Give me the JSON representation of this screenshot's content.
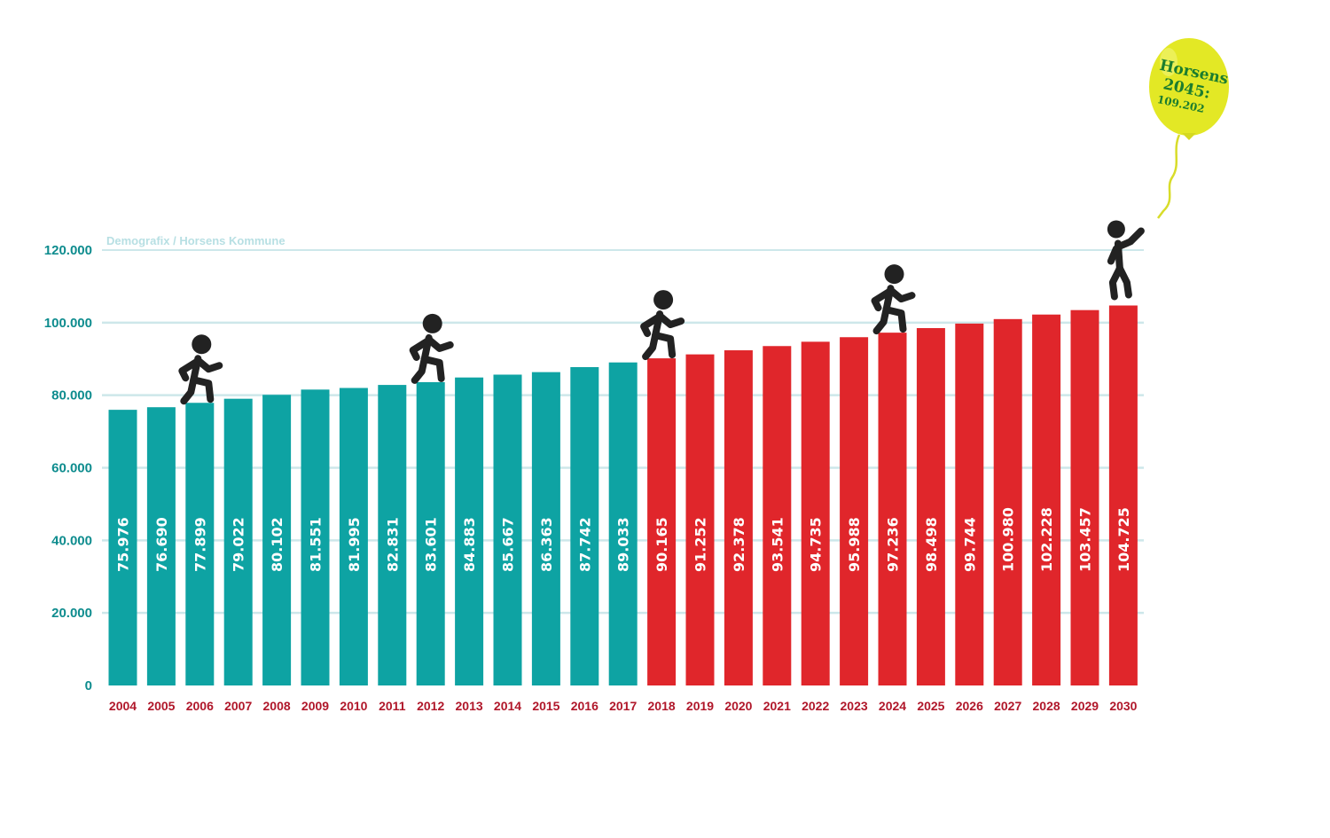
{
  "source_label": "Demografix / Horsens Kommune",
  "balloon": {
    "line1": "Horsens",
    "line2": "2045:",
    "line3": "109.202"
  },
  "colors": {
    "historical": "#0ea3a3",
    "forecast": "#e0262b",
    "grid": "#cde7ea",
    "ytick": "#0e8c8e",
    "xtick": "#b0172a",
    "balloon": "#e3e825",
    "figure": "#222222"
  },
  "chart_data": {
    "type": "bar",
    "title": "",
    "xlabel": "",
    "ylabel": "",
    "ylim": [
      0,
      120000
    ],
    "yticks": [
      0,
      20000,
      40000,
      60000,
      80000,
      100000,
      120000
    ],
    "ytick_labels": [
      "0",
      "20.000",
      "40.000",
      "60.000",
      "80.000",
      "100.000",
      "120.000"
    ],
    "grid": true,
    "categories": [
      "2004",
      "2005",
      "2006",
      "2007",
      "2008",
      "2009",
      "2010",
      "2011",
      "2012",
      "2013",
      "2014",
      "2015",
      "2016",
      "2017",
      "2018",
      "2019",
      "2020",
      "2021",
      "2022",
      "2023",
      "2024",
      "2025",
      "2026",
      "2027",
      "2028",
      "2029",
      "2030"
    ],
    "series": [
      {
        "values": [
          75976,
          76690,
          77899,
          79022,
          80102,
          81551,
          81995,
          82831,
          83601,
          84883,
          85667,
          86363,
          87742,
          89033,
          90165,
          91252,
          92378,
          93541,
          94735,
          95988,
          97236,
          98498,
          99744,
          100980,
          102228,
          103457,
          104725
        ]
      }
    ],
    "value_labels": [
      "75.976",
      "76.690",
      "77.899",
      "79.022",
      "80.102",
      "81.551",
      "81.995",
      "82.831",
      "83.601",
      "84.883",
      "85.667",
      "86.363",
      "87.742",
      "89.033",
      "90.165",
      "91.252",
      "92.378",
      "93.541",
      "94.735",
      "95.988",
      "97.236",
      "98.498",
      "99.744",
      "100.980",
      "102.228",
      "103.457",
      "104.725"
    ],
    "forecast_from_index": 14,
    "figure_on_categories": [
      "2006",
      "2012",
      "2018",
      "2024",
      "2030"
    ]
  }
}
